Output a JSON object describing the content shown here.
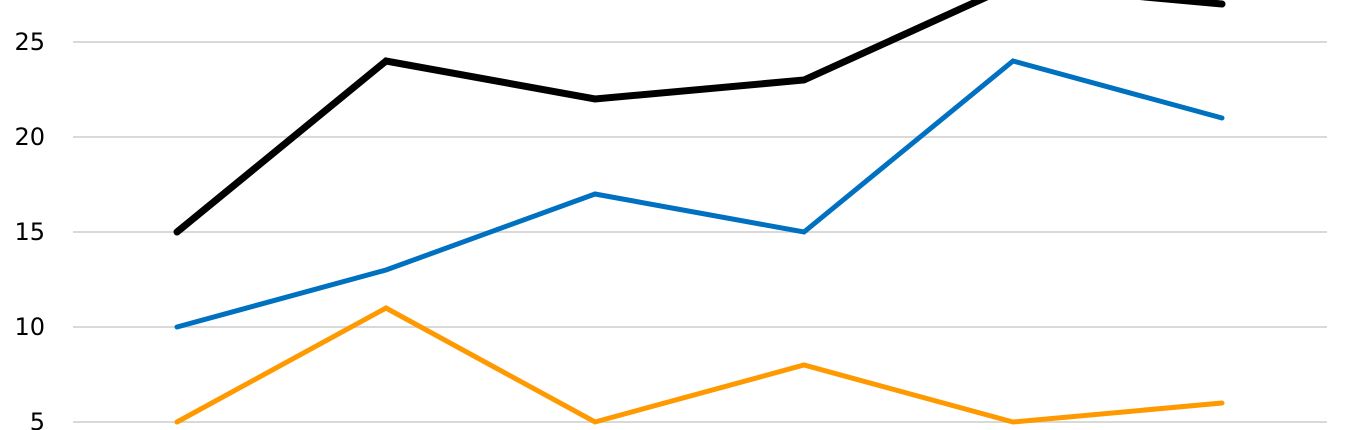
{
  "chart_data": {
    "type": "line",
    "title": "",
    "xlabel": "",
    "ylabel": "",
    "x": [
      1,
      2,
      3,
      4,
      5,
      6
    ],
    "xlim": [
      0.35,
      6.53
    ],
    "ylim": [
      5,
      27.2
    ],
    "y_ticks": [
      "5",
      "10",
      "15",
      "20",
      "25"
    ],
    "grid": true,
    "series": [
      {
        "color": "#000000",
        "values": [
          15,
          24,
          22,
          23,
          28,
          27
        ]
      },
      {
        "color": "#0070c0",
        "values": [
          10,
          13,
          17,
          15,
          24,
          21
        ]
      },
      {
        "color": "#ff9900",
        "values": [
          5,
          11,
          5,
          8,
          5,
          6
        ]
      }
    ]
  }
}
